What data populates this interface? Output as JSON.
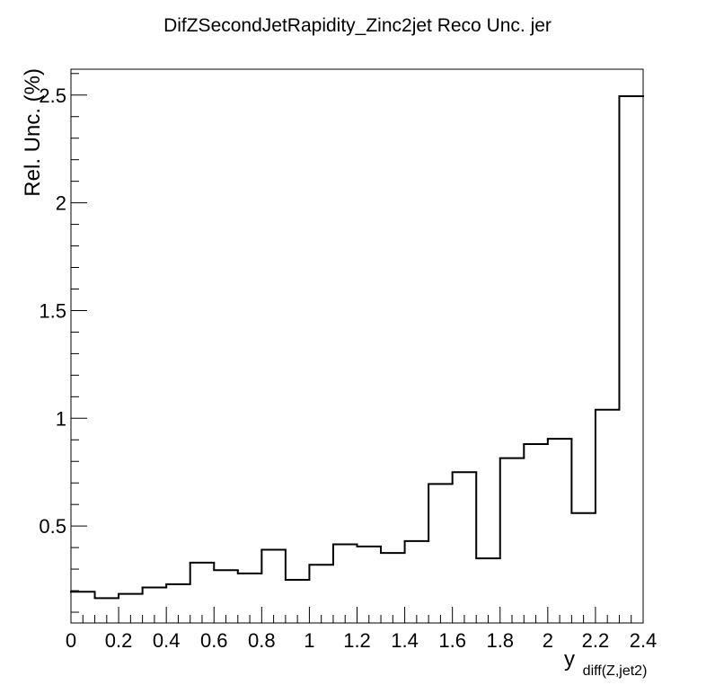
{
  "chart_data": {
    "type": "bar",
    "style": "step-histogram",
    "title": "DifZSecondJetRapidity_Zinc2jet Reco Unc. jer",
    "xlabel_main": "y",
    "xlabel_sub": "diff(Z,jet2)",
    "ylabel": "Rel. Unc. (%)",
    "xlim": [
      0,
      2.4
    ],
    "ylim": [
      0.05,
      2.62
    ],
    "bin_edges": [
      0,
      0.1,
      0.2,
      0.3,
      0.4,
      0.5,
      0.6,
      0.7,
      0.8,
      0.9,
      1.0,
      1.1,
      1.2,
      1.3,
      1.4,
      1.5,
      1.6,
      1.7,
      1.8,
      1.9,
      2.0,
      2.1,
      2.2,
      2.3,
      2.4
    ],
    "values": [
      0.195,
      0.165,
      0.185,
      0.215,
      0.23,
      0.33,
      0.295,
      0.28,
      0.39,
      0.25,
      0.32,
      0.415,
      0.405,
      0.375,
      0.43,
      0.695,
      0.75,
      0.35,
      0.815,
      0.88,
      0.905,
      0.56,
      1.04,
      2.495
    ],
    "x_ticks": [
      0,
      0.2,
      0.4,
      0.6,
      0.8,
      1.0,
      1.2,
      1.4,
      1.6,
      1.8,
      2.0,
      2.2,
      2.4
    ],
    "x_tick_labels": [
      "0",
      "0.2",
      "0.4",
      "0.6",
      "0.8",
      "1",
      "1.2",
      "1.4",
      "1.6",
      "1.8",
      "2",
      "2.2",
      "2.4"
    ],
    "y_ticks": [
      0.5,
      1.0,
      1.5,
      2.0,
      2.5
    ],
    "y_tick_labels": [
      "0.5",
      "1",
      "1.5",
      "2",
      "2.5"
    ],
    "line_color": "#000000",
    "grid": false,
    "legend": "none"
  }
}
